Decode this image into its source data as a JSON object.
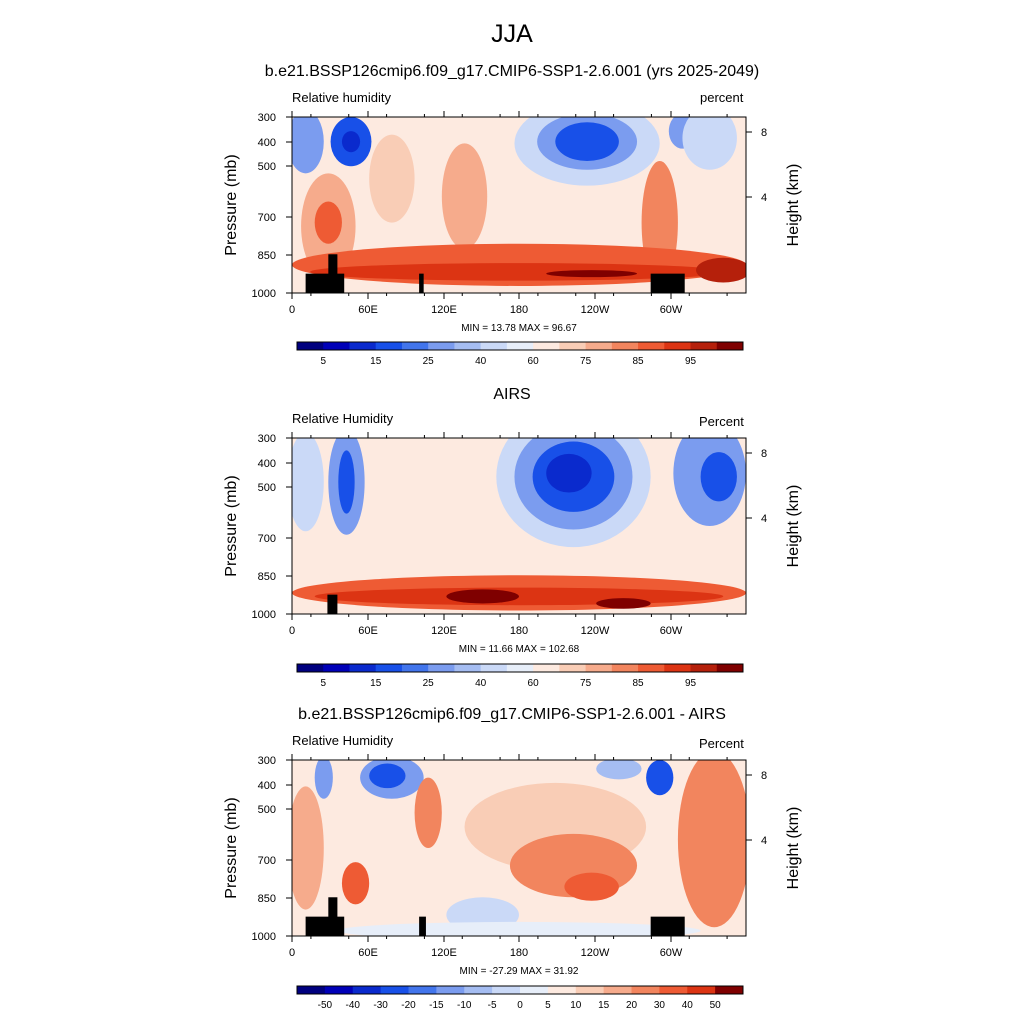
{
  "main_title": "JJA",
  "chart_data": [
    {
      "type": "heatmap",
      "title": "b.e21.BSSP126cmip6.f09_g17.CMIP6-SSP1-2.6.001 (yrs 2025-2049)",
      "left_label": "Relative humidity",
      "right_label": "percent",
      "ylabel": "Pressure (mb)",
      "y2label": "Height (km)",
      "x_ticks": [
        "0",
        "60E",
        "120E",
        "180",
        "120W",
        "60W"
      ],
      "y_ticks": [
        "300",
        "400",
        "500",
        "700",
        "850",
        "1000"
      ],
      "y2_ticks": [
        "8",
        "4"
      ],
      "stats": "MIN =  13.78  MAX =  96.67",
      "min": 13.78,
      "max": 96.67,
      "colorbar": {
        "label_values": [
          "5",
          "15",
          "25",
          "40",
          "60",
          "75",
          "85",
          "95"
        ],
        "colors": [
          "#00007f",
          "#0000b8",
          "#0a2acd",
          "#1850e8",
          "#4275ec",
          "#7b9cef",
          "#a5bdf2",
          "#cad9f7",
          "#e7eef9",
          "#fdeae0",
          "#f9cdb6",
          "#f6ab8c",
          "#f2855e",
          "#ee5b34",
          "#dc3413",
          "#b5200b",
          "#7f0000"
        ]
      }
    },
    {
      "type": "heatmap",
      "title": "AIRS",
      "left_label": "Relative Humidity",
      "right_label": "Percent",
      "ylabel": "Pressure (mb)",
      "y2label": "Height (km)",
      "x_ticks": [
        "0",
        "60E",
        "120E",
        "180",
        "120W",
        "60W"
      ],
      "y_ticks": [
        "300",
        "400",
        "500",
        "700",
        "850",
        "1000"
      ],
      "y2_ticks": [
        "8",
        "4"
      ],
      "stats": "MIN =  11.66  MAX = 102.68",
      "min": 11.66,
      "max": 102.68,
      "colorbar": {
        "label_values": [
          "5",
          "15",
          "25",
          "40",
          "60",
          "75",
          "85",
          "95"
        ],
        "colors": [
          "#00007f",
          "#0000b8",
          "#0a2acd",
          "#1850e8",
          "#4275ec",
          "#7b9cef",
          "#a5bdf2",
          "#cad9f7",
          "#e7eef9",
          "#fdeae0",
          "#f9cdb6",
          "#f6ab8c",
          "#f2855e",
          "#ee5b34",
          "#dc3413",
          "#b5200b",
          "#7f0000"
        ]
      }
    },
    {
      "type": "heatmap",
      "title": "b.e21.BSSP126cmip6.f09_g17.CMIP6-SSP1-2.6.001 - AIRS",
      "left_label": "Relative Humidity",
      "right_label": "Percent",
      "ylabel": "Pressure (mb)",
      "y2label": "Height (km)",
      "x_ticks": [
        "0",
        "60E",
        "120E",
        "180",
        "120W",
        "60W"
      ],
      "y_ticks": [
        "300",
        "400",
        "500",
        "700",
        "850",
        "1000"
      ],
      "y2_ticks": [
        "8",
        "4"
      ],
      "stats": "MIN = -27.29  MAX =  31.92",
      "min": -27.29,
      "max": 31.92,
      "colorbar": {
        "label_values": [
          "-50",
          "-40",
          "-30",
          "-20",
          "-15",
          "-10",
          "-5",
          "0",
          "5",
          "10",
          "15",
          "20",
          "30",
          "40",
          "50"
        ],
        "colors": [
          "#00007f",
          "#0000b8",
          "#0a2acd",
          "#1850e8",
          "#4275ec",
          "#7b9cef",
          "#a5bdf2",
          "#cad9f7",
          "#e7eef9",
          "#fdeae0",
          "#f9cdb6",
          "#f6ab8c",
          "#f2855e",
          "#ee5b34",
          "#dc3413",
          "#7f0000"
        ]
      }
    }
  ]
}
